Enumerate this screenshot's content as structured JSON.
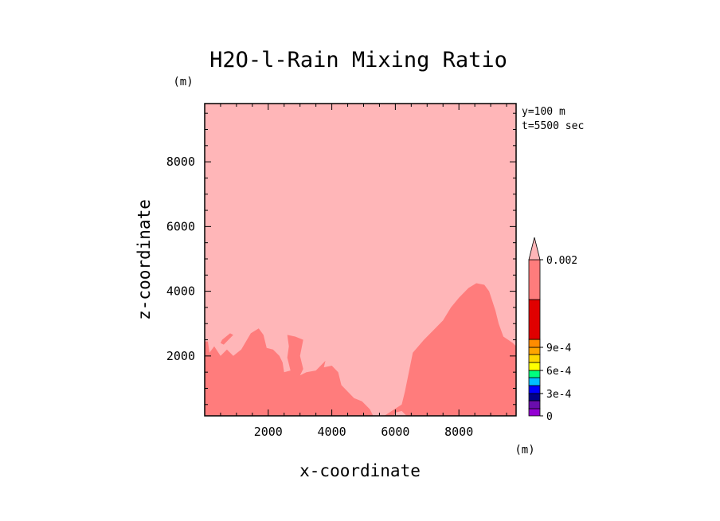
{
  "chart_data": {
    "type": "heatmap",
    "title": "H2O-l-Rain Mixing Ratio",
    "xlabel": "x-coordinate",
    "ylabel": "z-coordinate",
    "x_unit": "(m)",
    "y_unit": "(m)",
    "annotations": [
      "y=100 m",
      "t=5500 sec"
    ],
    "xlim": [
      0,
      9800
    ],
    "ylim": [
      150,
      9800
    ],
    "xticks": [
      2000,
      4000,
      6000,
      8000
    ],
    "yticks": [
      2000,
      4000,
      6000,
      8000
    ],
    "xtick_labels": [
      "2000",
      "4000",
      "6000",
      "8000"
    ],
    "ytick_labels": [
      "2000",
      "4000",
      "6000",
      "8000"
    ],
    "background_level_color": "#ffb6b8",
    "regions": [
      {
        "name": "rain-region-left",
        "color": "#ff7c7c",
        "x": [
          0,
          0,
          100,
          150,
          300,
          500,
          700,
          900,
          1150,
          1450,
          1700,
          1850,
          1950,
          2150,
          2350,
          2450,
          2500,
          2700,
          2600,
          2650,
          2600,
          2850,
          3100,
          3000,
          3100,
          3000,
          3200,
          3500,
          3800,
          3750,
          4000,
          4200,
          4300,
          4500,
          4700,
          4950,
          5200,
          5300,
          5200,
          5000,
          4000,
          3000,
          2000,
          1000,
          0
        ],
        "z": [
          150,
          2450,
          2450,
          2100,
          2300,
          2000,
          2200,
          2000,
          2200,
          2700,
          2850,
          2650,
          2250,
          2200,
          2000,
          1800,
          1500,
          1550,
          1950,
          2300,
          2650,
          2600,
          2500,
          2000,
          1600,
          1400,
          1500,
          1550,
          1850,
          1650,
          1700,
          1500,
          1100,
          900,
          700,
          600,
          350,
          150,
          150,
          150,
          150,
          150,
          150,
          150,
          150
        ]
      },
      {
        "name": "rain-region-right",
        "color": "#ff7c7c",
        "x": [
          5650,
          6200,
          6300,
          6550,
          6900,
          7200,
          7500,
          7750,
          8000,
          8300,
          8550,
          8800,
          8950,
          9050,
          9150,
          9250,
          9400,
          9700,
          9800,
          9800,
          6350,
          6200,
          6000,
          5950
        ],
        "z": [
          150,
          500,
          900,
          2100,
          2500,
          2800,
          3100,
          3500,
          3800,
          4100,
          4250,
          4200,
          4000,
          3700,
          3400,
          3000,
          2600,
          2400,
          2300,
          150,
          150,
          300,
          250,
          150
        ]
      },
      {
        "name": "rain-region-small-left",
        "color": "#ff7c7c",
        "x": [
          550,
          800,
          900,
          750,
          600,
          500
        ],
        "z": [
          2500,
          2700,
          2650,
          2500,
          2350,
          2400
        ]
      }
    ],
    "colorbar": {
      "levels_colors": [
        "#9400d3",
        "#6a0dad",
        "#00008b",
        "#0000ff",
        "#00bfff",
        "#00ff7f",
        "#ffff00",
        "#ffd700",
        "#ffa500",
        "#ff8c00",
        "#e00000",
        "#ff7c7c",
        "#ffb6b8"
      ],
      "tick_labels": [
        "0",
        "3e-4",
        "6e-4",
        "9e-4",
        "0.002"
      ]
    }
  }
}
